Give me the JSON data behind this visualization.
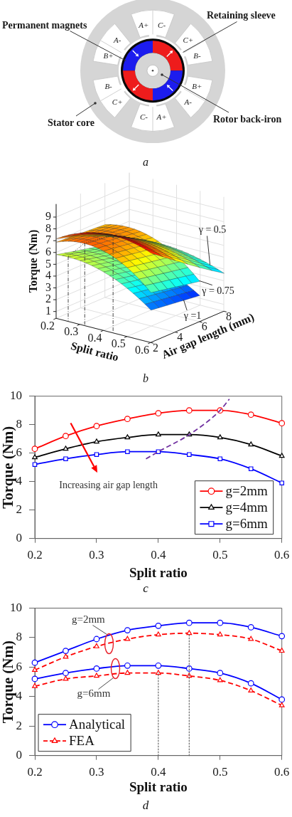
{
  "chart_data": [
    {
      "type": "other",
      "annotations": [
        "Permanent magnets",
        "Retaining sleeve",
        "Stator core",
        "Rotor back-iron",
        "A+",
        "C-",
        "C+",
        "B-",
        "B+",
        "A-",
        "A+",
        "C-",
        "C+",
        "B-",
        "B+",
        "A-",
        "a"
      ]
    },
    {
      "type": "other",
      "xlabel": "Split ratio",
      "ylabel": "Torque (Nm)",
      "x2label": "Air gap length (mm)",
      "annotations": [
        "0.2",
        "0.3",
        "0.4",
        "0.5",
        "0.6",
        "2",
        "4",
        "6",
        "8",
        "1",
        "2",
        "3",
        "4",
        "5",
        "6",
        "7",
        "8",
        "9",
        "γ = 0.5",
        "γ = 0.75",
        "γ =1",
        "b"
      ]
    },
    {
      "type": "line",
      "xlabel": "Split ratio",
      "ylabel": "Torque (Nm)",
      "x": [
        0.2,
        0.25,
        0.3,
        0.35,
        0.4,
        0.45,
        0.5,
        0.55,
        0.6
      ],
      "xlim": [
        0.2,
        0.6
      ],
      "xticks": [
        0.2,
        0.3,
        0.4,
        0.5,
        0.6
      ],
      "ylim": [
        0,
        10
      ],
      "yticks": [
        0,
        2,
        4,
        6,
        8,
        10
      ],
      "legend": "bottom right",
      "series": [
        {
          "name": "g=2mm",
          "color": "#ff0000",
          "marker": "circle",
          "values": [
            6.3,
            7.2,
            7.9,
            8.4,
            8.8,
            9.0,
            9.0,
            8.7,
            8.1
          ]
        },
        {
          "name": "g=4mm",
          "color": "#000000",
          "marker": "triangle",
          "values": [
            5.7,
            6.3,
            6.8,
            7.1,
            7.3,
            7.3,
            7.1,
            6.6,
            5.8
          ]
        },
        {
          "name": "g=6mm",
          "color": "#0000ff",
          "marker": "square",
          "values": [
            5.2,
            5.6,
            5.9,
            6.1,
            6.1,
            5.9,
            5.6,
            4.9,
            3.9
          ]
        },
        {
          "color": "#7030a0",
          "x": [
            0.38,
            0.4,
            0.45,
            0.5,
            0.515
          ],
          "values": [
            5.6,
            6.1,
            7.3,
            9.0,
            9.8
          ],
          "marker": "none",
          "line_style": "dashed"
        }
      ],
      "annotations": [
        "Increasing air gap length",
        "c"
      ]
    },
    {
      "type": "line",
      "xlabel": "Split ratio",
      "ylabel": "Torque (Nm)",
      "x": [
        0.2,
        0.25,
        0.3,
        0.35,
        0.4,
        0.45,
        0.5,
        0.55,
        0.6
      ],
      "xlim": [
        0.2,
        0.6
      ],
      "xticks": [
        0.2,
        0.3,
        0.4,
        0.5,
        0.6
      ],
      "ylim": [
        0,
        10
      ],
      "yticks": [
        0,
        2,
        4,
        6,
        8,
        10
      ],
      "legend": "bottom left",
      "series": [
        {
          "name": "Analytical",
          "color": "#0000ff",
          "marker": "circle",
          "values": [
            6.3,
            7.1,
            7.9,
            8.5,
            8.8,
            9.0,
            9.0,
            8.7,
            8.1
          ]
        },
        {
          "color": "#0000ff",
          "marker": "circle",
          "values": [
            5.2,
            5.6,
            5.9,
            6.1,
            6.1,
            5.9,
            5.6,
            4.9,
            3.8
          ]
        },
        {
          "name": "FEA",
          "color": "#ff0000",
          "marker": "triangle",
          "line_style": "dashed",
          "values": [
            5.8,
            6.7,
            7.4,
            7.9,
            8.2,
            8.3,
            8.2,
            7.9,
            7.1
          ]
        },
        {
          "color": "#ff0000",
          "marker": "triangle",
          "line_style": "dashed",
          "values": [
            4.7,
            5.2,
            5.4,
            5.6,
            5.6,
            5.4,
            5.1,
            4.4,
            3.4
          ]
        },
        {
          "color": "#666666",
          "x": [
            0.4,
            0.4
          ],
          "values": [
            0,
            5.6
          ],
          "marker": "none",
          "line_style": "dotted"
        },
        {
          "color": "#666666",
          "x": [
            0.45,
            0.45
          ],
          "values": [
            0,
            8.3
          ],
          "marker": "none",
          "line_style": "dotted"
        }
      ],
      "annotations": [
        {
          "text": "g=2mm",
          "x": 0.32,
          "y": 7.6
        },
        {
          "text": "g=6mm",
          "x": 0.33,
          "y": 5.9
        },
        "d"
      ]
    }
  ]
}
